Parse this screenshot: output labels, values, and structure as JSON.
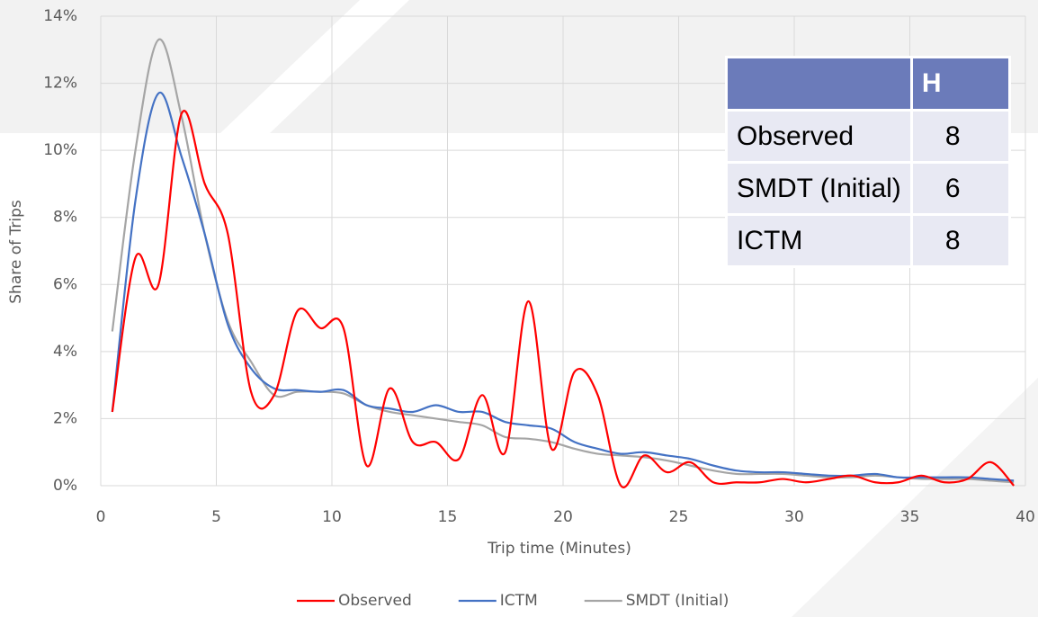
{
  "chart_data": {
    "type": "line",
    "x_label": "Trip time (Minutes)",
    "y_label": "Share of Trips",
    "x": [
      0.5,
      1.5,
      2.5,
      3.5,
      4.5,
      5.5,
      6.5,
      7.5,
      8.5,
      9.5,
      10.5,
      11.5,
      12.5,
      13.5,
      14.5,
      15.5,
      16.5,
      17.5,
      18.5,
      19.5,
      20.5,
      21.5,
      22.5,
      23.5,
      24.5,
      25.5,
      26.5,
      27.5,
      28.5,
      29.5,
      30.5,
      31.5,
      32.5,
      33.5,
      34.5,
      35.5,
      36.5,
      37.5,
      38.5,
      39.5
    ],
    "series": [
      {
        "name": "Observed",
        "color": "#ff0000",
        "values": [
          2.2,
          6.8,
          6.0,
          11.1,
          9.0,
          7.5,
          2.8,
          2.7,
          5.2,
          4.7,
          4.7,
          0.6,
          2.9,
          1.3,
          1.3,
          0.8,
          2.7,
          1.0,
          5.5,
          1.1,
          3.4,
          2.7,
          0.0,
          0.9,
          0.4,
          0.7,
          0.1,
          0.1,
          0.1,
          0.2,
          0.1,
          0.2,
          0.3,
          0.1,
          0.1,
          0.3,
          0.1,
          0.2,
          0.7,
          0.0
        ]
      },
      {
        "name": "ICTM",
        "color": "#4472c4",
        "values": [
          2.2,
          8.5,
          11.7,
          9.8,
          7.5,
          4.8,
          3.5,
          2.9,
          2.85,
          2.8,
          2.85,
          2.4,
          2.3,
          2.2,
          2.4,
          2.2,
          2.2,
          1.9,
          1.8,
          1.7,
          1.3,
          1.1,
          0.95,
          1.0,
          0.9,
          0.8,
          0.6,
          0.45,
          0.4,
          0.4,
          0.35,
          0.3,
          0.3,
          0.35,
          0.25,
          0.25,
          0.25,
          0.25,
          0.2,
          0.15
        ]
      },
      {
        "name": "SMDT (Initial)",
        "color": "#a5a5a5",
        "values": [
          4.6,
          10.0,
          13.3,
          11.0,
          7.5,
          4.9,
          3.7,
          2.7,
          2.8,
          2.8,
          2.75,
          2.4,
          2.2,
          2.1,
          2.0,
          1.9,
          1.8,
          1.45,
          1.4,
          1.3,
          1.1,
          0.95,
          0.9,
          0.85,
          0.75,
          0.6,
          0.45,
          0.35,
          0.35,
          0.35,
          0.3,
          0.25,
          0.25,
          0.3,
          0.25,
          0.2,
          0.2,
          0.2,
          0.15,
          0.1
        ]
      }
    ],
    "xlim": [
      0,
      40
    ],
    "xticks": [
      0,
      5,
      10,
      15,
      20,
      25,
      30,
      35,
      40
    ],
    "ylim": [
      0,
      14
    ],
    "yticks": [
      {
        "value": 0,
        "label": "0%"
      },
      {
        "value": 2,
        "label": "2%"
      },
      {
        "value": 4,
        "label": "4%"
      },
      {
        "value": 6,
        "label": "6%"
      },
      {
        "value": 8,
        "label": "8%"
      },
      {
        "value": 10,
        "label": "10%"
      },
      {
        "value": 12,
        "label": "12%"
      },
      {
        "value": 14,
        "label": "14%"
      }
    ],
    "grid": true,
    "legend": "bottom"
  },
  "table": {
    "header": [
      "H"
    ],
    "rows": [
      [
        "Observed",
        "8"
      ],
      [
        "SMDT (Initial)",
        "6"
      ],
      [
        "ICTM",
        "8"
      ]
    ]
  }
}
